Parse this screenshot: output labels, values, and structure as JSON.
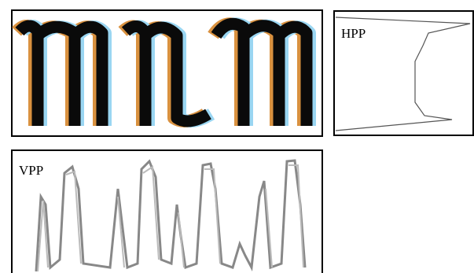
{
  "panels": [
    {
      "label": "HPP"
    },
    {
      "label": "VPP"
    }
  ]
}
